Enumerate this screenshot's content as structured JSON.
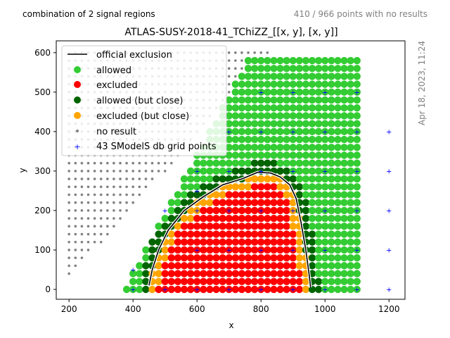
{
  "header": {
    "left_text": "combination of 2 signal regions",
    "right_text": "410 / 966 points with no results",
    "side_text": "Apr 18, 2023, 11:24"
  },
  "chart_data": {
    "type": "scatter",
    "title": "ATLAS-SUSY-2018-41_TChiZZ_[[x, y], [x, y]]",
    "xlabel": "x",
    "ylabel": "y",
    "xlim": [
      160,
      1250
    ],
    "ylim": [
      -25,
      630
    ],
    "x_ticks": [
      200,
      400,
      600,
      800,
      1000,
      1200
    ],
    "y_ticks": [
      0,
      100,
      200,
      300,
      400,
      500,
      600
    ],
    "grid": false,
    "legend_position": "top-left",
    "legend": [
      {
        "key": "official",
        "label": "official exclusion"
      },
      {
        "key": "allowed",
        "label": "allowed"
      },
      {
        "key": "excluded",
        "label": "excluded"
      },
      {
        "key": "allowed_close",
        "label": "allowed (but close)"
      },
      {
        "key": "excluded_close",
        "label": "excluded (but close)"
      },
      {
        "key": "no_result",
        "label": "no result"
      },
      {
        "key": "db_points",
        "label": "43 SModelS db grid points"
      }
    ],
    "colors": {
      "official": "#000000",
      "allowed": "#33cc33",
      "excluded": "#ff0000",
      "allowed_close": "#006400",
      "excluded_close": "#ffa500",
      "no_result": "#808080",
      "db_points": "#0000ff"
    },
    "grid_points": {
      "x_start": 200,
      "x_step": 20,
      "x_end": 1100,
      "y_start": 0,
      "y_step": 20,
      "y_end": 600,
      "no_result_region": "y >= 0.9*(x-200)+30",
      "data_region": "y <= 1.5*(x-370) and y <= 580"
    },
    "official_exclusion": [
      [
        450,
        10
      ],
      [
        460,
        50
      ],
      [
        480,
        100
      ],
      [
        510,
        150
      ],
      [
        560,
        200
      ],
      [
        620,
        235
      ],
      [
        680,
        265
      ],
      [
        740,
        280
      ],
      [
        790,
        297
      ],
      [
        830,
        295
      ],
      [
        860,
        285
      ],
      [
        890,
        265
      ],
      [
        910,
        230
      ],
      [
        925,
        170
      ],
      [
        940,
        100
      ],
      [
        950,
        40
      ],
      [
        955,
        5
      ]
    ],
    "db_grid_points": [
      [
        400,
        0
      ],
      [
        400,
        50
      ],
      [
        500,
        0
      ],
      [
        500,
        200
      ],
      [
        600,
        0
      ],
      [
        600,
        100
      ],
      [
        600,
        200
      ],
      [
        600,
        300
      ],
      [
        700,
        0
      ],
      [
        700,
        100
      ],
      [
        700,
        200
      ],
      [
        700,
        300
      ],
      [
        800,
        0
      ],
      [
        800,
        100
      ],
      [
        800,
        200
      ],
      [
        800,
        300
      ],
      [
        800,
        400
      ],
      [
        800,
        500
      ],
      [
        900,
        0
      ],
      [
        900,
        100
      ],
      [
        900,
        200
      ],
      [
        900,
        300
      ],
      [
        900,
        400
      ],
      [
        900,
        500
      ],
      [
        1000,
        0
      ],
      [
        1000,
        100
      ],
      [
        1000,
        200
      ],
      [
        1000,
        300
      ],
      [
        1000,
        400
      ],
      [
        1000,
        500
      ],
      [
        1100,
        0
      ],
      [
        1100,
        100
      ],
      [
        1100,
        200
      ],
      [
        1100,
        300
      ],
      [
        1100,
        400
      ],
      [
        1100,
        500
      ],
      [
        1200,
        0
      ],
      [
        1200,
        100
      ],
      [
        1200,
        200
      ],
      [
        1200,
        300
      ],
      [
        1200,
        400
      ],
      [
        700,
        400
      ],
      [
        600,
        250
      ]
    ]
  }
}
